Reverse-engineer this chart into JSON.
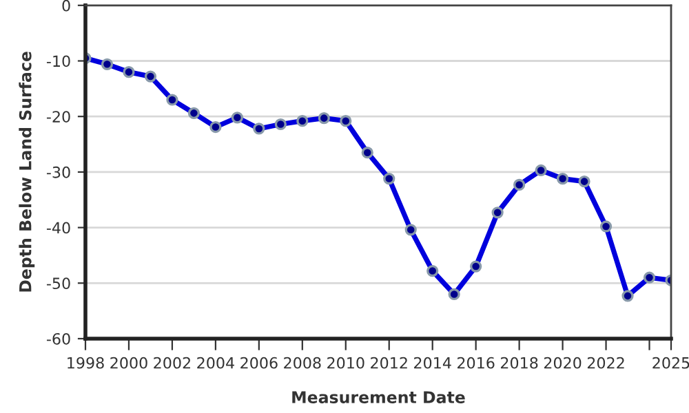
{
  "chart_data": {
    "type": "line",
    "xlabel": "Measurement Date",
    "ylabel": "Depth Below Land Surface",
    "x": [
      1998,
      1999,
      2000,
      2001,
      2002,
      2003,
      2004,
      2005,
      2006,
      2007,
      2008,
      2009,
      2010,
      2011,
      2012,
      2013,
      2014,
      2015,
      2016,
      2017,
      2018,
      2019,
      2020,
      2021,
      2022,
      2023,
      2024,
      2025
    ],
    "series": [
      {
        "color": "#0000dd",
        "values": [
          -9.5,
          -10.6,
          -12.0,
          -12.8,
          -17.0,
          -19.4,
          -21.9,
          -20.2,
          -22.2,
          -21.4,
          -20.8,
          -20.3,
          -20.8,
          -26.5,
          -31.2,
          -40.4,
          -47.8,
          -52.0,
          -47.0,
          -37.3,
          -32.3,
          -29.7,
          -31.2,
          -31.7,
          -39.8,
          -52.3,
          -49.0,
          -49.5
        ]
      }
    ],
    "xlim": [
      1998,
      2025
    ],
    "xticks": [
      1998,
      2000,
      2002,
      2004,
      2006,
      2008,
      2010,
      2012,
      2014,
      2016,
      2018,
      2020,
      2022,
      {
        "value": 2024,
        "label": null
      },
      {
        "value": 2025,
        "label": "2025"
      }
    ],
    "ylim": [
      -60,
      0
    ],
    "yticks": [
      -60,
      -50,
      -40,
      -30,
      -20,
      -10,
      0
    ],
    "grid": "y",
    "marker": "circle",
    "line_style": "solid",
    "legend": false
  }
}
